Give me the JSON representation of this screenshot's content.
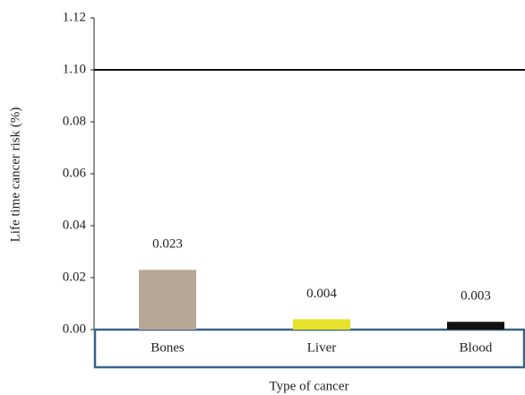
{
  "chart_data": {
    "type": "bar",
    "categories": [
      "Bones",
      "Liver",
      "Blood"
    ],
    "values": [
      0.023,
      0.004,
      0.003
    ],
    "colors": [
      "#b7a797",
      "#e6e22a",
      "#111111"
    ],
    "ylim": [
      0,
      1.12
    ],
    "yticks": [
      {
        "value": 0,
        "label": "0.00"
      },
      0.02,
      0.04,
      0.06,
      0.08,
      {
        "value": 1.1,
        "label": "1.10"
      },
      1.12
    ],
    "reference_line": 1.1,
    "y_label": "Life time cancer risk (%)",
    "x_label": "Type of cancer"
  }
}
